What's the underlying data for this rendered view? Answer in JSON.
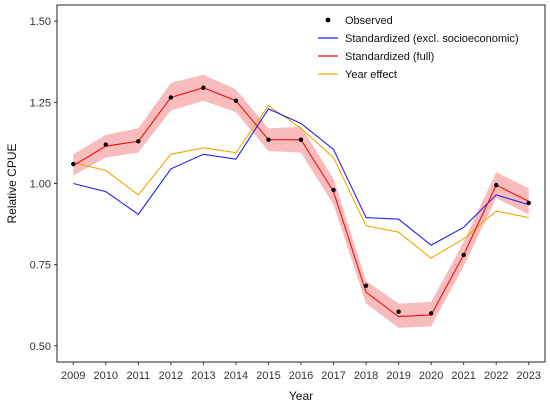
{
  "chart_data": {
    "type": "line",
    "xlabel": "Year",
    "ylabel": "Relative CPUE",
    "x": [
      2009,
      2010,
      2011,
      2012,
      2013,
      2014,
      2015,
      2016,
      2017,
      2018,
      2019,
      2020,
      2021,
      2022,
      2023
    ],
    "ylim": [
      0.45,
      1.55
    ],
    "y_ticks": [
      0.5,
      0.75,
      1.0,
      1.25,
      1.5
    ],
    "y_tick_labels": [
      "0.50",
      "0.75",
      "1.00",
      "1.25",
      "1.50"
    ],
    "x_ticks": [
      2009,
      2010,
      2011,
      2012,
      2013,
      2014,
      2015,
      2016,
      2017,
      2018,
      2019,
      2020,
      2021,
      2022,
      2023
    ],
    "x_tick_labels": [
      "2009",
      "2010",
      "2011",
      "2012",
      "2013",
      "2014",
      "2015",
      "2016",
      "2017",
      "2018",
      "2019",
      "2020",
      "2021",
      "2022",
      "2023"
    ],
    "legend": {
      "position": "top-right",
      "entries": [
        {
          "label": "Observed",
          "color": "#000000",
          "type": "point"
        },
        {
          "label": "Standardized (excl. socioeconomic)",
          "color": "#2222ee",
          "type": "line"
        },
        {
          "label": "Standardized (full)",
          "color": "#ee1111",
          "type": "line"
        },
        {
          "label": "Year effect",
          "color": "#f0a800",
          "type": "line"
        }
      ]
    },
    "series": [
      {
        "name": "Observed",
        "kind": "points",
        "color": "#000000",
        "values": [
          1.06,
          1.12,
          1.13,
          1.265,
          1.295,
          1.255,
          1.135,
          1.135,
          0.98,
          0.685,
          0.605,
          0.6,
          0.78,
          0.995,
          0.94
        ]
      },
      {
        "name": "Standardized (excl. socioeconomic)",
        "kind": "line",
        "color": "#2222ee",
        "values": [
          1.0,
          0.975,
          0.905,
          1.045,
          1.09,
          1.075,
          1.23,
          1.185,
          1.105,
          0.895,
          0.89,
          0.81,
          0.865,
          0.965,
          0.935
        ]
      },
      {
        "name": "Standardized (full)",
        "kind": "line_ribbon",
        "color": "#ee1111",
        "ribbon_color": "#f6a5a5",
        "values": [
          1.055,
          1.115,
          1.13,
          1.265,
          1.295,
          1.255,
          1.135,
          1.135,
          0.975,
          0.665,
          0.59,
          0.595,
          0.78,
          0.995,
          0.945
        ],
        "lower": [
          1.025,
          1.08,
          1.095,
          1.225,
          1.255,
          1.22,
          1.1,
          1.095,
          0.935,
          0.63,
          0.555,
          0.56,
          0.745,
          0.955,
          0.905
        ],
        "upper": [
          1.09,
          1.15,
          1.17,
          1.31,
          1.335,
          1.29,
          1.17,
          1.175,
          1.015,
          0.7,
          0.63,
          0.635,
          0.82,
          1.035,
          0.985
        ]
      },
      {
        "name": "Year effect",
        "kind": "line",
        "color": "#f0a800",
        "values": [
          1.065,
          1.04,
          0.965,
          1.09,
          1.11,
          1.095,
          1.24,
          1.17,
          1.08,
          0.87,
          0.85,
          0.77,
          0.83,
          0.915,
          0.895
        ]
      }
    ]
  }
}
